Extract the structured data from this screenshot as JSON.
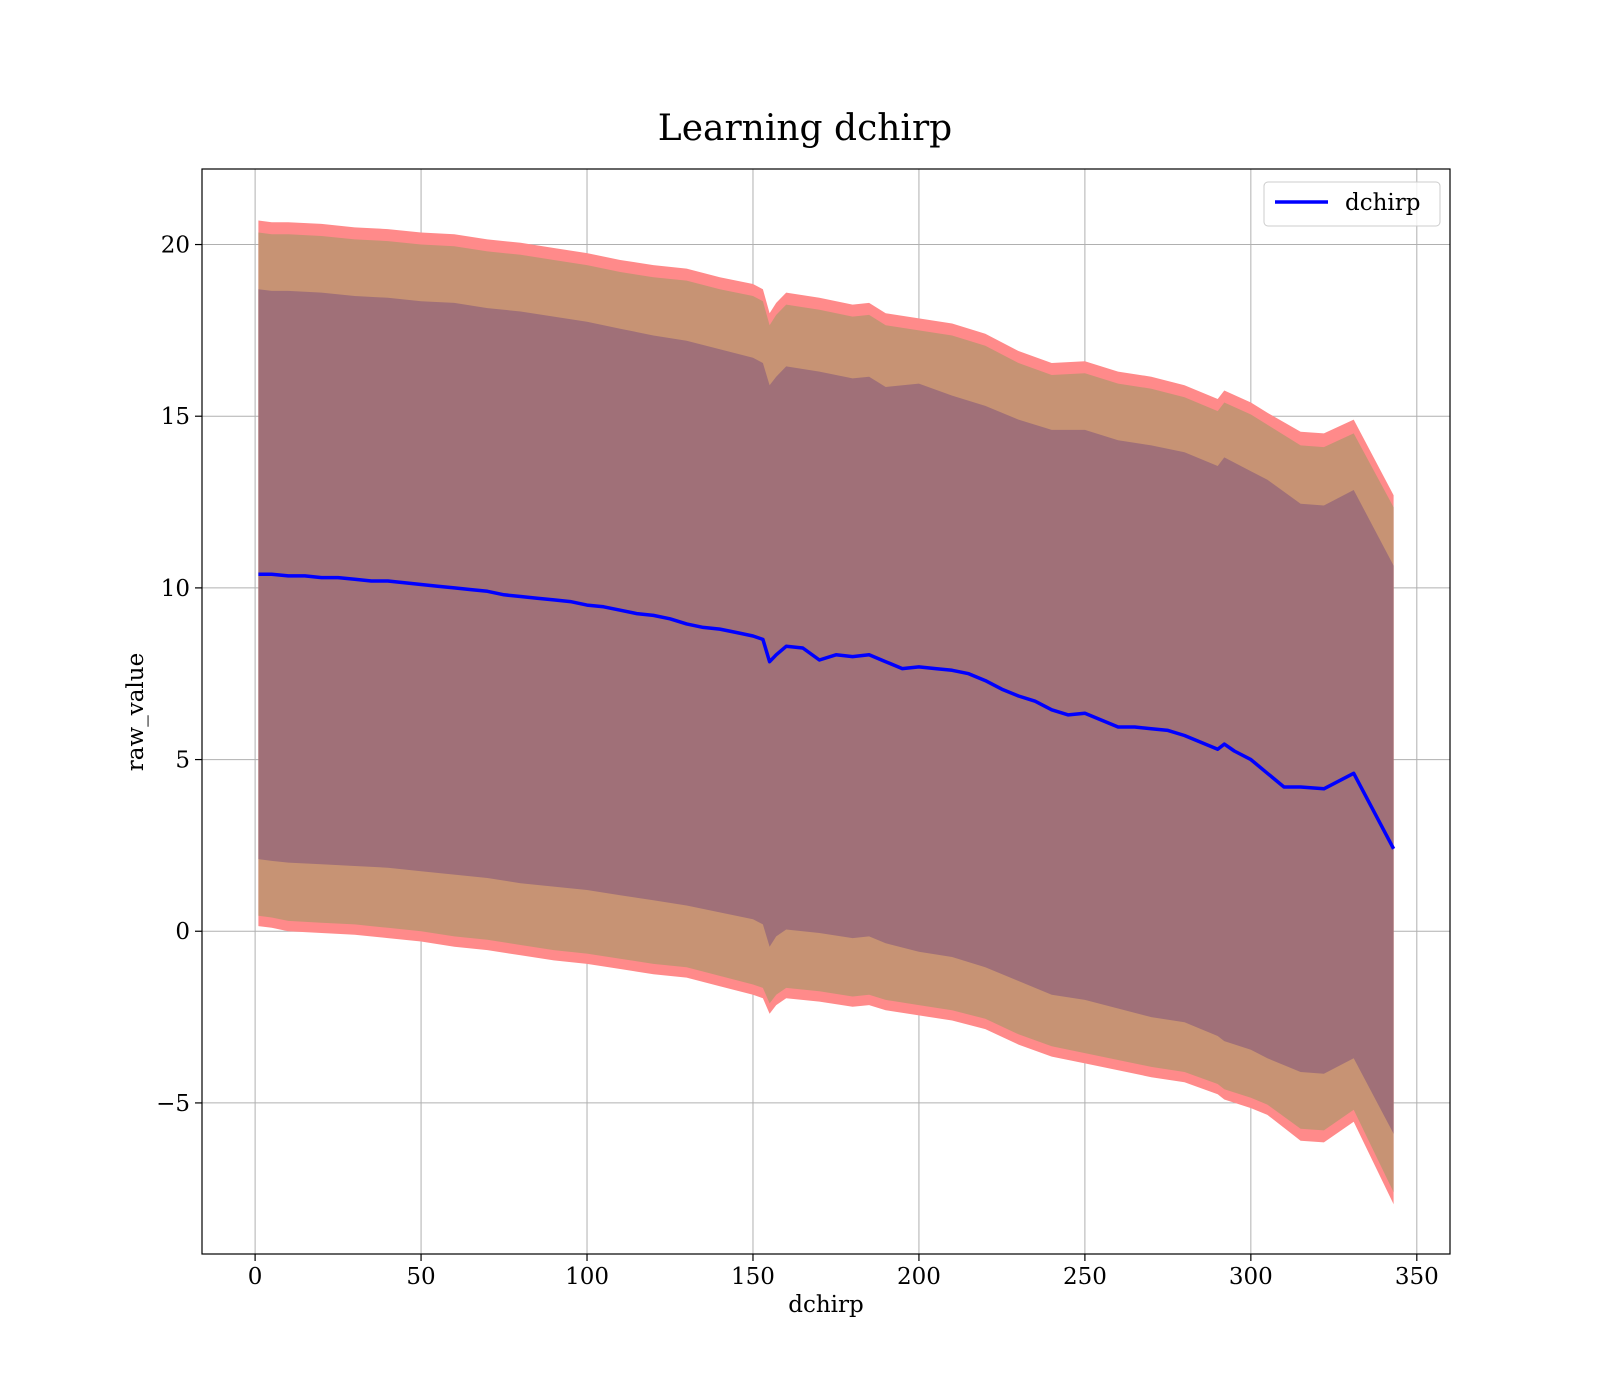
{
  "chart_data": {
    "type": "line",
    "title": "Learning dchirp",
    "xlabel": "dchirp",
    "ylabel": "raw_value",
    "xlim": [
      -16,
      360
    ],
    "ylim": [
      -9.4,
      22.2
    ],
    "xticks": [
      0,
      50,
      100,
      150,
      200,
      250,
      300,
      350
    ],
    "xtick_labels": [
      "0",
      "50",
      "100",
      "150",
      "200",
      "250",
      "300",
      "350"
    ],
    "yticks": [
      -5,
      0,
      5,
      10,
      15,
      20
    ],
    "ytick_labels": [
      "−5",
      "0",
      "5",
      "10",
      "15",
      "20"
    ],
    "grid": true,
    "legend": {
      "position": "top-right",
      "entries": [
        "dchirp"
      ]
    },
    "colors": {
      "line": "#0000ff",
      "band_outer": "#ff8a8a",
      "band_middle": "#c79374",
      "band_inner": "#a07078",
      "grid": "#b0b0b0"
    },
    "series": [
      {
        "name": "dchirp",
        "role": "mean_line",
        "x": [
          1,
          5,
          10,
          15,
          20,
          25,
          30,
          35,
          40,
          45,
          50,
          55,
          60,
          65,
          70,
          75,
          80,
          85,
          90,
          95,
          100,
          105,
          110,
          115,
          120,
          125,
          130,
          135,
          140,
          145,
          150,
          153,
          155,
          157,
          160,
          165,
          170,
          175,
          180,
          185,
          190,
          195,
          200,
          205,
          210,
          215,
          220,
          225,
          230,
          235,
          240,
          245,
          250,
          255,
          260,
          265,
          270,
          275,
          280,
          285,
          290,
          292,
          295,
          300,
          305,
          310,
          315,
          322,
          331,
          343
        ],
        "y": [
          10.4,
          10.4,
          10.35,
          10.35,
          10.3,
          10.3,
          10.25,
          10.2,
          10.2,
          10.15,
          10.1,
          10.05,
          10.0,
          9.95,
          9.9,
          9.8,
          9.75,
          9.7,
          9.65,
          9.6,
          9.5,
          9.45,
          9.35,
          9.25,
          9.2,
          9.1,
          8.95,
          8.85,
          8.8,
          8.7,
          8.6,
          8.5,
          7.85,
          8.05,
          8.3,
          8.25,
          7.9,
          8.05,
          8.0,
          8.05,
          7.85,
          7.65,
          7.7,
          7.65,
          7.6,
          7.5,
          7.3,
          7.05,
          6.85,
          6.7,
          6.45,
          6.3,
          6.35,
          6.15,
          5.95,
          5.95,
          5.9,
          5.85,
          5.7,
          5.5,
          5.3,
          5.45,
          5.25,
          5.0,
          4.6,
          4.2,
          4.2,
          4.15,
          4.6,
          2.4
        ]
      },
      {
        "name": "",
        "role": "band_outer",
        "x": [
          1,
          5,
          10,
          20,
          30,
          40,
          50,
          60,
          70,
          80,
          90,
          100,
          110,
          120,
          130,
          140,
          150,
          153,
          155,
          157,
          160,
          170,
          180,
          185,
          190,
          200,
          210,
          220,
          230,
          240,
          250,
          260,
          270,
          280,
          290,
          292,
          300,
          305,
          315,
          322,
          331,
          343
        ],
        "upper": [
          20.7,
          20.65,
          20.65,
          20.6,
          20.5,
          20.45,
          20.35,
          20.3,
          20.15,
          20.05,
          19.9,
          19.75,
          19.55,
          19.4,
          19.3,
          19.05,
          18.85,
          18.7,
          18.0,
          18.3,
          18.6,
          18.45,
          18.25,
          18.3,
          18.0,
          17.85,
          17.7,
          17.4,
          16.9,
          16.55,
          16.6,
          16.3,
          16.15,
          15.9,
          15.5,
          15.75,
          15.4,
          15.1,
          14.55,
          14.5,
          14.9,
          12.7
        ],
        "lower": [
          0.15,
          0.1,
          0.0,
          -0.05,
          -0.1,
          -0.2,
          -0.3,
          -0.45,
          -0.55,
          -0.7,
          -0.85,
          -0.95,
          -1.1,
          -1.25,
          -1.35,
          -1.6,
          -1.85,
          -1.95,
          -2.4,
          -2.15,
          -1.95,
          -2.05,
          -2.2,
          -2.15,
          -2.3,
          -2.45,
          -2.6,
          -2.85,
          -3.3,
          -3.65,
          -3.85,
          -4.05,
          -4.25,
          -4.4,
          -4.75,
          -4.9,
          -5.15,
          -5.35,
          -6.1,
          -6.15,
          -5.55,
          -7.95
        ]
      },
      {
        "name": "",
        "role": "band_middle",
        "x": [
          1,
          5,
          10,
          20,
          30,
          40,
          50,
          60,
          70,
          80,
          90,
          100,
          110,
          120,
          130,
          140,
          150,
          153,
          155,
          157,
          160,
          170,
          180,
          185,
          190,
          200,
          210,
          220,
          230,
          240,
          250,
          260,
          270,
          280,
          290,
          292,
          300,
          305,
          315,
          322,
          331,
          343
        ],
        "upper": [
          20.35,
          20.3,
          20.3,
          20.25,
          20.15,
          20.1,
          20.0,
          19.95,
          19.8,
          19.7,
          19.55,
          19.4,
          19.2,
          19.05,
          18.95,
          18.7,
          18.5,
          18.35,
          17.65,
          17.95,
          18.25,
          18.1,
          17.9,
          17.95,
          17.65,
          17.5,
          17.35,
          17.05,
          16.55,
          16.2,
          16.25,
          15.95,
          15.8,
          15.55,
          15.15,
          15.4,
          15.05,
          14.75,
          14.15,
          14.1,
          14.5,
          12.35
        ],
        "lower": [
          0.45,
          0.4,
          0.3,
          0.25,
          0.2,
          0.1,
          0.0,
          -0.15,
          -0.25,
          -0.4,
          -0.55,
          -0.65,
          -0.8,
          -0.95,
          -1.05,
          -1.3,
          -1.55,
          -1.65,
          -2.1,
          -1.85,
          -1.65,
          -1.75,
          -1.9,
          -1.85,
          -2.0,
          -2.15,
          -2.3,
          -2.55,
          -3.0,
          -3.35,
          -3.55,
          -3.75,
          -3.95,
          -4.1,
          -4.45,
          -4.6,
          -4.85,
          -5.05,
          -5.75,
          -5.8,
          -5.2,
          -7.6
        ]
      },
      {
        "name": "",
        "role": "band_inner",
        "x": [
          1,
          5,
          10,
          20,
          30,
          40,
          50,
          60,
          70,
          80,
          90,
          100,
          110,
          120,
          130,
          140,
          150,
          153,
          155,
          157,
          160,
          170,
          180,
          185,
          190,
          200,
          210,
          220,
          230,
          240,
          250,
          260,
          270,
          280,
          290,
          292,
          300,
          305,
          315,
          322,
          331,
          343
        ],
        "upper": [
          18.7,
          18.65,
          18.65,
          18.6,
          18.5,
          18.45,
          18.35,
          18.3,
          18.15,
          18.05,
          17.9,
          17.75,
          17.55,
          17.35,
          17.2,
          16.95,
          16.7,
          16.55,
          15.9,
          16.15,
          16.45,
          16.3,
          16.1,
          16.15,
          15.85,
          15.95,
          15.6,
          15.3,
          14.9,
          14.6,
          14.6,
          14.3,
          14.15,
          13.95,
          13.55,
          13.8,
          13.4,
          13.15,
          12.45,
          12.4,
          12.85,
          10.65
        ],
        "lower": [
          2.1,
          2.05,
          2.0,
          1.95,
          1.9,
          1.85,
          1.75,
          1.65,
          1.55,
          1.4,
          1.3,
          1.2,
          1.05,
          0.9,
          0.75,
          0.55,
          0.35,
          0.2,
          -0.45,
          -0.15,
          0.05,
          -0.05,
          -0.2,
          -0.15,
          -0.35,
          -0.6,
          -0.75,
          -1.05,
          -1.45,
          -1.85,
          -2.0,
          -2.25,
          -2.5,
          -2.65,
          -3.05,
          -3.2,
          -3.45,
          -3.7,
          -4.1,
          -4.15,
          -3.7,
          -5.9
        ]
      }
    ]
  }
}
